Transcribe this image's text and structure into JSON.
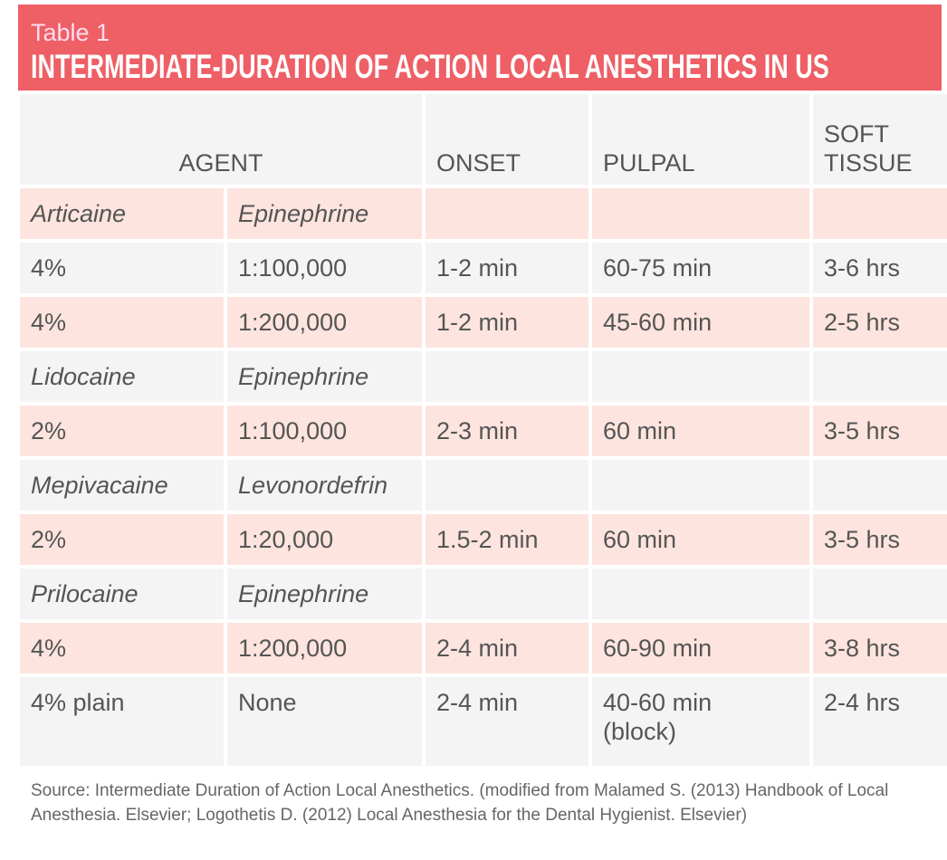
{
  "header": {
    "label": "Table 1",
    "title": "INTERMEDIATE-DURATION OF ACTION LOCAL ANESTHETICS IN US"
  },
  "table": {
    "columns": [
      "AGENT",
      "ONSET",
      "PULPAL",
      "SOFT TISSUE"
    ],
    "groups": [
      {
        "agent": "Articaine",
        "vasoconstrictor": "Epinephrine",
        "rows": [
          [
            "4%",
            "1:100,000",
            "1-2 min",
            "60-75 min",
            "3-6 hrs"
          ],
          [
            "4%",
            "1:200,000",
            "1-2 min",
            "45-60 min",
            "2-5 hrs"
          ]
        ]
      },
      {
        "agent": "Lidocaine",
        "vasoconstrictor": "Epinephrine",
        "rows": [
          [
            "2%",
            "1:100,000",
            "2-3 min",
            "60 min",
            "3-5 hrs"
          ]
        ]
      },
      {
        "agent": "Mepivacaine",
        "vasoconstrictor": "Levonordefrin",
        "rows": [
          [
            "2%",
            "1:20,000",
            "1.5-2 min",
            "60 min",
            "3-5 hrs"
          ]
        ]
      },
      {
        "agent": "Prilocaine",
        "vasoconstrictor": "Epinephrine",
        "rows": [
          [
            "4%",
            "1:200,000",
            "2-4 min",
            "60-90 min",
            "3-8 hrs"
          ],
          [
            "4% plain",
            "None",
            "2-4 min",
            "40-60 min\n(block)",
            "2-4 hrs"
          ]
        ]
      }
    ]
  },
  "source": "Source: Intermediate Duration of Action Local Anesthetics. (modified from Malamed S. (2013) Handbook of Local Anesthesia. Elsevier; Logothetis D. (2012) Local Anesthesia for the Dental Hygienist. Elsevier)"
}
